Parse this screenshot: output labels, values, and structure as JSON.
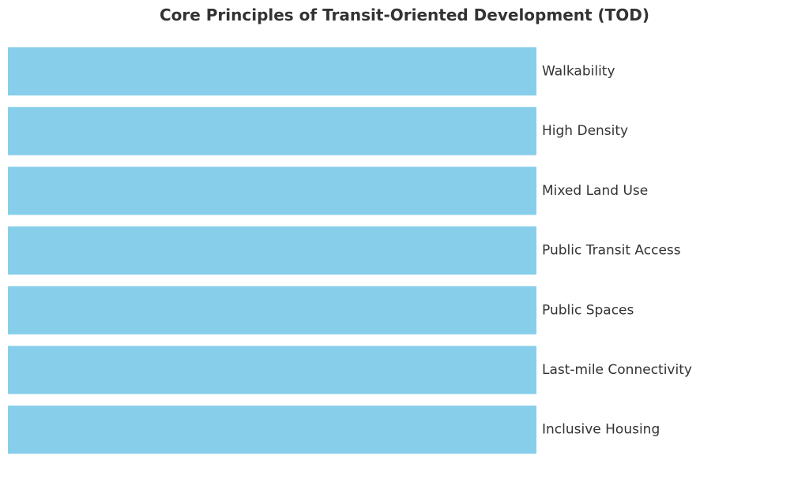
{
  "chart_data": {
    "type": "bar",
    "orientation": "horizontal",
    "title": "Core Principles of Transit-Oriented Development (TOD)",
    "categories": [
      "Walkability",
      "High Density",
      "Mixed Land Use",
      "Public Transit Access",
      "Public Spaces",
      "Last-mile Connectivity",
      "Inclusive Housing"
    ],
    "values": [
      1,
      1,
      1,
      1,
      1,
      1,
      1
    ],
    "xlim": [
      0,
      1
    ],
    "bar_color": "#87CEEB",
    "label_position": "right-of-bar",
    "axes_visible": false,
    "grid": false,
    "legend": "none"
  }
}
